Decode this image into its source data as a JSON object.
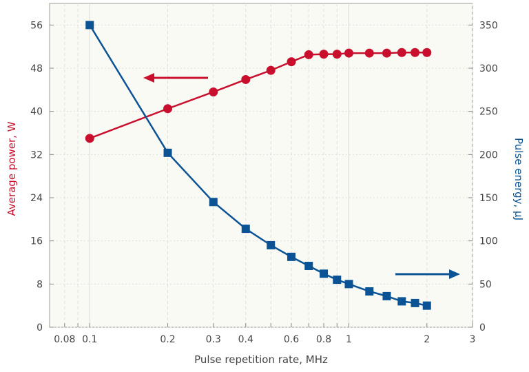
{
  "chart_data": {
    "type": "line",
    "xlabel": "Pulse repetition rate, MHz",
    "ylabel_left": "Average power, W",
    "ylabel_right": "Pulse energy, µJ",
    "x_scale": "log",
    "xlim": [
      0.07,
      3
    ],
    "ylim_left": [
      0,
      60
    ],
    "ylim_right": [
      0,
      375
    ],
    "x_ticks": [
      0.08,
      0.1,
      0.2,
      0.3,
      0.4,
      0.6,
      0.8,
      1,
      2,
      3
    ],
    "x_tick_labels": [
      "0.08",
      "0.1",
      "0.2",
      "0.3",
      "0.4",
      "0.6",
      "0.8",
      "1",
      "2",
      "3"
    ],
    "y_left_ticks": [
      0,
      8,
      16,
      24,
      32,
      40,
      48,
      56
    ],
    "y_right_ticks": [
      0,
      50,
      100,
      150,
      200,
      250,
      300,
      350
    ],
    "grid": true,
    "x": [
      0.1,
      0.2,
      0.3,
      0.4,
      0.5,
      0.6,
      0.7,
      0.8,
      0.9,
      1.0,
      1.2,
      1.4,
      1.6,
      1.8,
      2.0
    ],
    "series": [
      {
        "axis": "left",
        "color": "#c8102e",
        "marker": "circle",
        "values": [
          35.0,
          40.5,
          43.6,
          45.9,
          47.6,
          49.2,
          50.5,
          50.6,
          50.6,
          50.8,
          50.8,
          50.8,
          50.9,
          50.9,
          50.9
        ]
      },
      {
        "axis": "right",
        "color": "#0b5394",
        "marker": "square",
        "values": [
          350,
          202,
          145,
          114,
          95,
          81.5,
          71,
          62,
          55,
          50,
          41.5,
          36,
          30,
          28,
          25
        ]
      }
    ],
    "annotations": [
      {
        "type": "arrow",
        "direction": "left",
        "color": "#c8102e",
        "points_to": "left axis"
      },
      {
        "type": "arrow",
        "direction": "right",
        "color": "#0b5394",
        "points_to": "right axis"
      }
    ],
    "background": "#fafaf5"
  }
}
